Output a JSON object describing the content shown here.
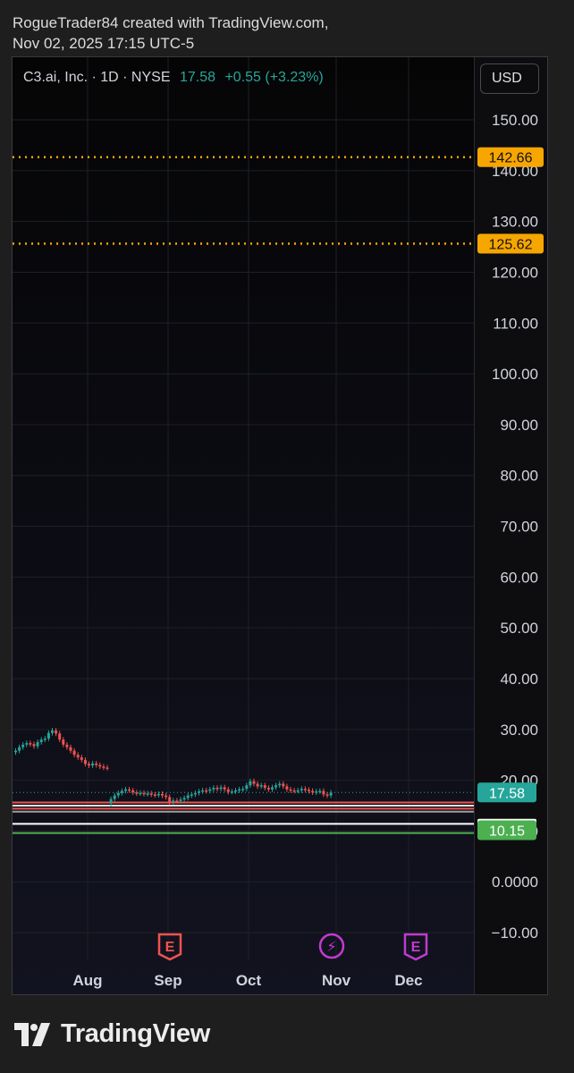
{
  "header": {
    "line1": "RogueTrader84 created with TradingView.com,",
    "line2": "Nov 02, 2025 17:15 UTC-5"
  },
  "legend": {
    "symbol": "C3.ai, Inc. · 1D · NYSE",
    "price": "17.58",
    "change": "+0.55 (+3.23%)"
  },
  "currency_button": "USD",
  "footer": {
    "brand": "TradingView"
  },
  "colors": {
    "up": "#26a69a",
    "down": "#ef5350",
    "level_line": "#f7a600",
    "current_price_label": "#26a69a",
    "support_label": "#4caf50"
  },
  "chart_data": {
    "type": "candlestick",
    "y_axis_ticks": [
      "150.00",
      "140.00",
      "130.00",
      "120.00",
      "110.00",
      "100.00",
      "90.00",
      "80.00",
      "70.00",
      "60.00",
      "50.00",
      "40.00",
      "30.00",
      "20.00",
      "10.00",
      "0.0000",
      "−10.00"
    ],
    "y_axis_values": [
      150,
      140,
      130,
      120,
      110,
      100,
      90,
      80,
      70,
      60,
      50,
      40,
      30,
      20,
      10,
      0,
      -10
    ],
    "ylim": [
      -10,
      150
    ],
    "x_axis_labels": [
      "Aug",
      "Sep",
      "Oct",
      "Nov",
      "Dec"
    ],
    "price_levels": [
      {
        "label": "142.66",
        "value": 142.66,
        "style": "dotted",
        "color": "#f7a600"
      },
      {
        "label": "125.62",
        "value": 125.62,
        "style": "dotted",
        "color": "#f7a600"
      }
    ],
    "current_price": {
      "label": "17.58",
      "value": 17.58
    },
    "support_line": {
      "label": "10.15",
      "value": 10.15
    },
    "horizontal_lines": [
      {
        "value": 15.6,
        "color": "#ef5350"
      },
      {
        "value": 15.0,
        "color": "#e0e0e0"
      },
      {
        "value": 14.4,
        "color": "#ef5350"
      },
      {
        "value": 13.8,
        "color": "#9e9e9e"
      },
      {
        "value": 11.4,
        "color": "#ffffff"
      },
      {
        "value": 9.6,
        "color": "#4caf50"
      }
    ],
    "events": [
      {
        "month": "Sep",
        "type": "earnings",
        "icon": "E",
        "color": "#ef5350"
      },
      {
        "month": "Nov",
        "type": "dividend-flash",
        "icon": "⚡",
        "color": "#c03bd0"
      },
      {
        "month": "Dec",
        "type": "earnings-upcoming",
        "icon": "E",
        "color": "#c03bd0"
      }
    ],
    "close_series": [
      25.8,
      26.5,
      27.0,
      27.3,
      27.1,
      26.7,
      27.5,
      28.0,
      28.2,
      29.3,
      29.8,
      29.2,
      28.0,
      27.0,
      26.5,
      25.8,
      25.0,
      24.5,
      24.0,
      23.2,
      22.9,
      23.3,
      23.0,
      22.7,
      22.5,
      22.4,
      16.3,
      17.0,
      17.5,
      17.9,
      18.2,
      18.0,
      17.6,
      17.4,
      17.5,
      17.3,
      17.4,
      17.2,
      17.1,
      17.3,
      17.0,
      16.7,
      15.7,
      16.0,
      15.9,
      16.2,
      16.5,
      17.0,
      17.2,
      17.5,
      17.8,
      18.0,
      17.9,
      18.2,
      18.5,
      18.3,
      18.6,
      18.2,
      17.7,
      17.8,
      18.0,
      18.2,
      18.3,
      19.0,
      19.8,
      19.3,
      18.8,
      19.0,
      18.5,
      18.2,
      18.6,
      19.0,
      19.3,
      18.8,
      18.2,
      18.0,
      17.9,
      18.0,
      18.3,
      18.1,
      17.9,
      17.6,
      17.8,
      17.9,
      17.2,
      17.0,
      17.58
    ]
  }
}
